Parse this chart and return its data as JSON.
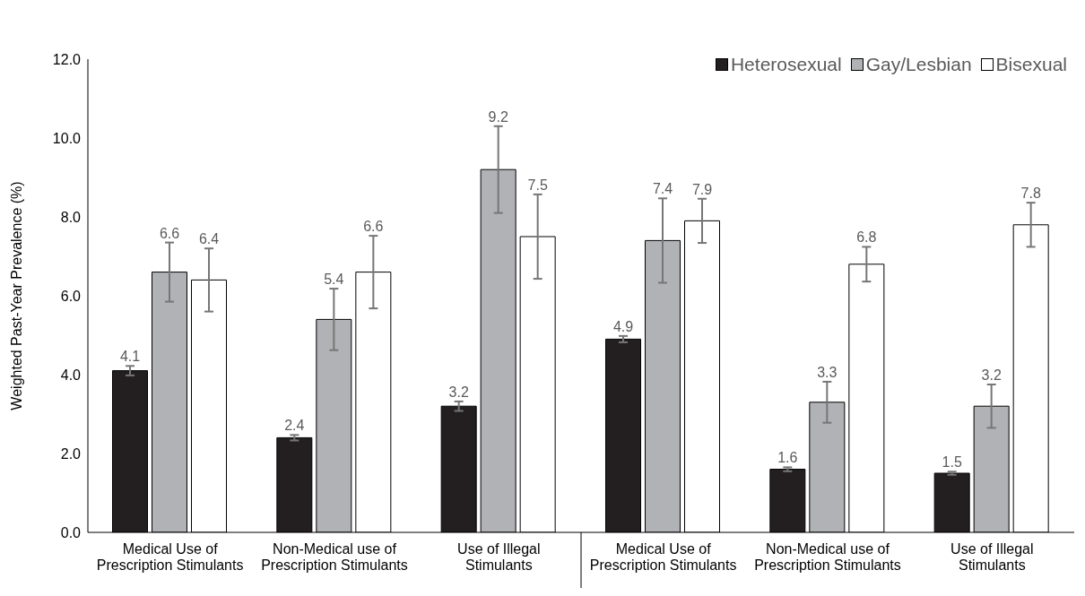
{
  "chart_data": {
    "type": "bar",
    "ylabel": "Weighted Past-Year Prevalence (%)",
    "categories": [
      "Medical Use of Prescription Stimulants",
      "Non-Medical use of Prescription Stimulants",
      "Use of Illegal Stimulants",
      "Medical Use of Prescription Stimulants",
      "Non-Medical use of Prescription Stimulants",
      "Use of Illegal Stimulants"
    ],
    "series": [
      {
        "name": "Heterosexual",
        "color": "#231f20",
        "values": [
          4.1,
          2.4,
          3.2,
          4.9,
          1.6,
          1.5
        ],
        "errors": [
          0.12,
          0.07,
          0.12,
          0.08,
          0.05,
          0.04
        ]
      },
      {
        "name": "Gay/Lesbian",
        "color": "#b1b2b6",
        "values": [
          6.6,
          5.4,
          9.2,
          7.4,
          3.3,
          3.2
        ],
        "errors": [
          0.75,
          0.78,
          1.1,
          1.07,
          0.52,
          0.55
        ]
      },
      {
        "name": "Bisexual",
        "color": "#ffffff",
        "values": [
          6.4,
          6.6,
          7.5,
          7.9,
          6.8,
          7.8
        ],
        "errors": [
          0.8,
          0.92,
          1.07,
          0.56,
          0.44,
          0.56
        ]
      }
    ],
    "ylim": [
      0,
      12
    ],
    "yticks": [
      {
        "value": 0,
        "label": "0.0"
      },
      {
        "value": 2,
        "label": "2.0"
      },
      {
        "value": 4,
        "label": "4.0"
      },
      {
        "value": 6,
        "label": "6.0"
      },
      {
        "value": 8,
        "label": "8.0"
      },
      {
        "value": 10,
        "label": "10.0"
      },
      {
        "value": 12,
        "label": "12.0"
      }
    ],
    "grid": false,
    "legend": "top right",
    "data_labels": true
  }
}
